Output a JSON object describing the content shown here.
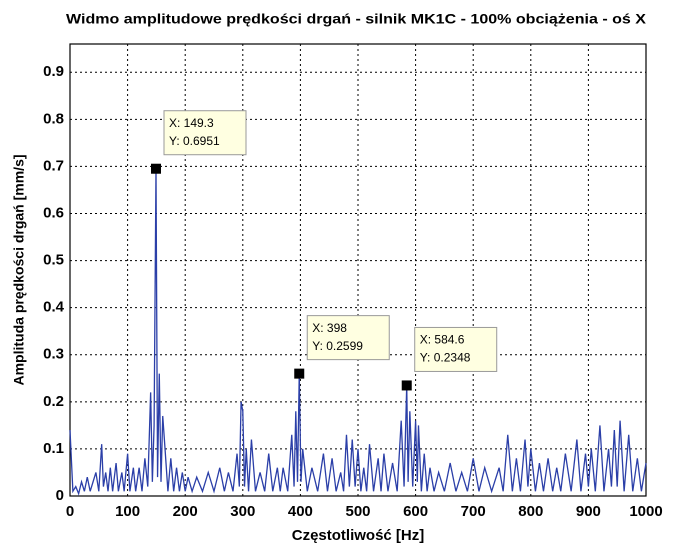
{
  "chart_data": {
    "type": "line",
    "title": "Widmo amplitudowe prędkości drgań - silnik MK1C - 100% obciążenia - oś X",
    "xlabel": "Częstotliwość [Hz]",
    "ylabel": "Amplituda prędkości drgań [mm/s]",
    "xlim": [
      0,
      1000
    ],
    "ylim": [
      0,
      0.96
    ],
    "xticks": [
      0,
      100,
      200,
      300,
      400,
      500,
      600,
      700,
      800,
      900,
      1000
    ],
    "yticks": [
      0,
      0.1,
      0.2,
      0.3,
      0.4,
      0.5,
      0.6,
      0.7,
      0.8,
      0.9
    ],
    "grid": true,
    "x": [
      0,
      5,
      10,
      15,
      20,
      25,
      30,
      35,
      40,
      45,
      50,
      55,
      58,
      62,
      66,
      70,
      74,
      80,
      84,
      90,
      94,
      100,
      104,
      110,
      114,
      120,
      125,
      130,
      135,
      140,
      143,
      146,
      149.3,
      152,
      155,
      158,
      161,
      165,
      170,
      175,
      180,
      185,
      190,
      195,
      200,
      205,
      212,
      220,
      230,
      240,
      250,
      260,
      268,
      275,
      283,
      290,
      294,
      297,
      300,
      303,
      306,
      310,
      315,
      322,
      330,
      338,
      345,
      352,
      360,
      365,
      370,
      378,
      385,
      389,
      392,
      395,
      398,
      401,
      404,
      412,
      420,
      430,
      440,
      447,
      455,
      462,
      470,
      475,
      480,
      485,
      490,
      495,
      500,
      505,
      510,
      515,
      520,
      527,
      535,
      540,
      545,
      552,
      560,
      568,
      575,
      580,
      584.6,
      587,
      590,
      595,
      600,
      603,
      605,
      610,
      615,
      620,
      625,
      632,
      640,
      650,
      660,
      670,
      680,
      690,
      700,
      710,
      720,
      732,
      745,
      752,
      760,
      768,
      775,
      782,
      790,
      795,
      800,
      808,
      815,
      822,
      830,
      838,
      845,
      852,
      860,
      870,
      880,
      887,
      895,
      900,
      905,
      912,
      920,
      927,
      935,
      940,
      945,
      950,
      955,
      962,
      970,
      977,
      985,
      992,
      1000
    ],
    "series": [
      {
        "color": "#2b3fa8",
        "values": [
          0.14,
          0.01,
          0.02,
          0.005,
          0.03,
          0.01,
          0.04,
          0.01,
          0.03,
          0.05,
          0.01,
          0.11,
          0.02,
          0.05,
          0.01,
          0.06,
          0.01,
          0.07,
          0.01,
          0.05,
          0.01,
          0.09,
          0.01,
          0.06,
          0.01,
          0.06,
          0.01,
          0.08,
          0.02,
          0.22,
          0.03,
          0.15,
          0.6951,
          0.04,
          0.26,
          0.03,
          0.17,
          0.1,
          0.01,
          0.08,
          0.01,
          0.06,
          0.01,
          0.05,
          0.01,
          0.04,
          0.01,
          0.04,
          0.01,
          0.05,
          0.01,
          0.06,
          0.01,
          0.05,
          0.01,
          0.09,
          0.02,
          0.2,
          0.18,
          0.02,
          0.1,
          0.01,
          0.12,
          0.01,
          0.05,
          0.01,
          0.09,
          0.01,
          0.06,
          0.01,
          0.06,
          0.01,
          0.13,
          0.02,
          0.18,
          0.03,
          0.2599,
          0.03,
          0.1,
          0.01,
          0.06,
          0.01,
          0.09,
          0.01,
          0.08,
          0.01,
          0.05,
          0.01,
          0.13,
          0.02,
          0.12,
          0.02,
          0.1,
          0.01,
          0.06,
          0.01,
          0.11,
          0.01,
          0.08,
          0.01,
          0.09,
          0.01,
          0.07,
          0.01,
          0.16,
          0.02,
          0.2348,
          0.03,
          0.18,
          0.02,
          0.16,
          0.03,
          0.15,
          0.01,
          0.09,
          0.01,
          0.06,
          0.01,
          0.05,
          0.01,
          0.07,
          0.01,
          0.05,
          0.01,
          0.08,
          0.01,
          0.06,
          0.01,
          0.06,
          0.01,
          0.13,
          0.01,
          0.08,
          0.01,
          0.12,
          0.02,
          0.1,
          0.01,
          0.07,
          0.01,
          0.08,
          0.01,
          0.06,
          0.01,
          0.09,
          0.01,
          0.12,
          0.01,
          0.09,
          0.02,
          0.1,
          0.01,
          0.15,
          0.01,
          0.1,
          0.02,
          0.14,
          0.02,
          0.16,
          0.01,
          0.13,
          0.01,
          0.08,
          0.01,
          0.07
        ]
      }
    ],
    "annotations": [
      {
        "x": 149.3,
        "y": 0.6951,
        "x_label": "X: 149.3",
        "y_label": "Y: 0.6951"
      },
      {
        "x": 398,
        "y": 0.2599,
        "x_label": "X: 398",
        "y_label": "Y: 0.2599"
      },
      {
        "x": 584.6,
        "y": 0.2348,
        "x_label": "X: 584.6",
        "y_label": "Y: 0.2348"
      }
    ]
  }
}
